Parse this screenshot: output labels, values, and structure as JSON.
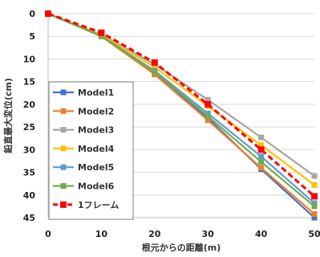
{
  "chart_data": {
    "type": "line",
    "xlabel": "根元からの距離(m)",
    "ylabel": "鉛直最大変位(cm)",
    "x": [
      0,
      10,
      20,
      30,
      40,
      50
    ],
    "xlim": [
      0,
      50
    ],
    "ylim": [
      0,
      45
    ],
    "y_inverted": true,
    "xticks": [
      "0",
      "10",
      "20",
      "30",
      "40",
      "50"
    ],
    "yticks": [
      "0",
      "5",
      "10",
      "15",
      "20",
      "25",
      "30",
      "35",
      "40",
      "45"
    ],
    "grid": "horizontal",
    "legend_position": "bottom-left",
    "series": [
      {
        "name": "Model1",
        "color": "#4472C4",
        "dashed": false,
        "values": [
          0,
          5.0,
          13.0,
          23.0,
          34.3,
          45.0
        ]
      },
      {
        "name": "Model2",
        "color": "#ED7D31",
        "dashed": false,
        "values": [
          0,
          5.0,
          13.4,
          23.5,
          34.0,
          44.2
        ]
      },
      {
        "name": "Model3",
        "color": "#A5A5A5",
        "dashed": false,
        "values": [
          0,
          4.6,
          11.2,
          19.0,
          27.3,
          35.8
        ]
      },
      {
        "name": "Model4",
        "color": "#FFC000",
        "dashed": false,
        "values": [
          0,
          4.7,
          11.8,
          20.4,
          29.0,
          37.8
        ]
      },
      {
        "name": "Model5",
        "color": "#5B9BD5",
        "dashed": false,
        "values": [
          0,
          4.9,
          12.6,
          22.0,
          31.5,
          41.8
        ]
      },
      {
        "name": "Model6",
        "color": "#70AD47",
        "dashed": false,
        "values": [
          0,
          4.9,
          12.9,
          22.6,
          32.7,
          42.5
        ]
      },
      {
        "name": "1フレーム",
        "color": "#FF0000",
        "dashed": true,
        "values": [
          0,
          4.2,
          10.8,
          20.0,
          30.0,
          40.3
        ]
      }
    ]
  }
}
